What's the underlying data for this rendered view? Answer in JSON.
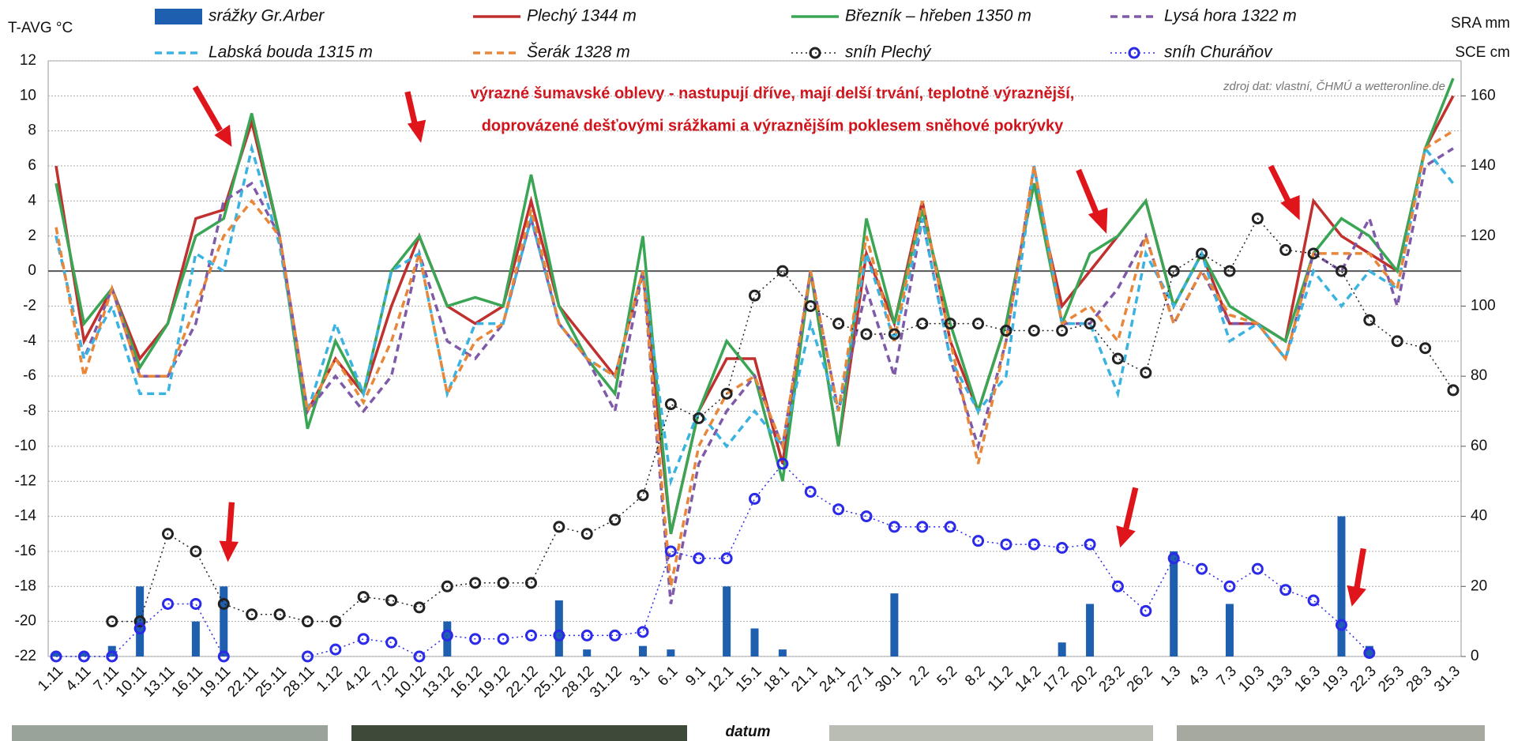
{
  "chart_data": {
    "type": "line",
    "y_label": "T-AVG °C",
    "y2_labels": [
      "SRA mm",
      "SCE cm"
    ],
    "x_label": "datum",
    "annotations": [
      "výrazné šumavské oblevy - nastupují dříve, mají delší trvání, teplotně výraznější,",
      "doprovázené dešťovými srážkami a výraznějším  poklesem sněhové pokrývky"
    ],
    "source": "zdroj dat: vlastní, ČHMÚ a wetteronline.de",
    "categories": [
      "1.11",
      "4.11",
      "7.11",
      "10.11",
      "13.11",
      "16.11",
      "19.11",
      "22.11",
      "25.11",
      "28.11",
      "1.12",
      "4.12",
      "7.12",
      "10.12",
      "13.12",
      "16.12",
      "19.12",
      "22.12",
      "25.12",
      "28.12",
      "31.12",
      "3.1",
      "6.1",
      "9.1",
      "12.1",
      "15.1",
      "18.1",
      "21.1",
      "24.1",
      "27.1",
      "30.1",
      "2.2",
      "5.2",
      "8.2",
      "11.2",
      "14.2",
      "17.2",
      "20.2",
      "23.2",
      "26.2",
      "1.3",
      "4.3",
      "7.3",
      "10.3",
      "13.3",
      "16.3",
      "19.3",
      "22.3",
      "25.3",
      "28.3",
      "31.3"
    ],
    "ylim": [
      -22,
      12
    ],
    "yticks": [
      -22,
      -20,
      -18,
      -16,
      -14,
      -12,
      -10,
      -8,
      -6,
      -4,
      -2,
      0,
      2,
      4,
      6,
      8,
      10,
      12
    ],
    "y2lim": [
      0,
      170
    ],
    "y2ticks": [
      0,
      20,
      40,
      60,
      80,
      100,
      120,
      140,
      160
    ],
    "grid": true,
    "series": [
      {
        "name": "srážky Gr.Arber",
        "kind": "bar",
        "axis": "y2",
        "color": "#1f5fb0",
        "values": [
          1,
          1,
          3,
          20,
          0,
          10,
          20,
          0,
          0,
          0,
          0,
          0,
          0,
          0,
          10,
          0,
          0,
          0,
          16,
          2,
          0,
          3,
          2,
          0,
          20,
          8,
          2,
          0,
          0,
          0,
          18,
          0,
          0,
          0,
          0,
          0,
          4,
          15,
          0,
          0,
          30,
          0,
          15,
          0,
          0,
          0,
          40,
          3,
          0,
          0,
          0
        ]
      },
      {
        "name": "Plechý 1344 m",
        "kind": "line",
        "color": "#c0302e",
        "dash": "solid",
        "values": [
          6,
          -4,
          -1,
          -5,
          -3,
          3,
          3.5,
          8.5,
          2,
          -8,
          -5,
          -7,
          -2,
          2,
          -2,
          -3,
          -2,
          4,
          -2,
          -4,
          -6,
          0,
          -15,
          -8,
          -5,
          -5,
          -11,
          0,
          -10,
          1,
          -3,
          4,
          -4,
          -8,
          -3,
          5,
          -2,
          0,
          2,
          4,
          -2,
          1,
          -3,
          -3,
          -4,
          4,
          2,
          1,
          0,
          7,
          10
        ]
      },
      {
        "name": "Březník – hřeben 1350 m",
        "kind": "line",
        "color": "#3aa655",
        "dash": "solid",
        "values": [
          5,
          -3,
          -1,
          -5.5,
          -3,
          2,
          3,
          9,
          2,
          -9,
          -4,
          -7,
          0,
          2,
          -2,
          -1.5,
          -2,
          5.5,
          -2,
          -5,
          -7,
          2,
          -15,
          -8,
          -4,
          -6,
          -12,
          0,
          -10,
          3,
          -3,
          3.5,
          -3,
          -8,
          -3,
          5,
          -3,
          1,
          2,
          4,
          -2,
          1,
          -2,
          -3,
          -4,
          1,
          3,
          2,
          0,
          7,
          11
        ]
      },
      {
        "name": "Lysá hora 1322 m",
        "kind": "line",
        "color": "#7f5aa8",
        "dash": "dash",
        "values": [
          2,
          -5,
          -1,
          -6,
          -6,
          -3,
          4,
          5,
          2,
          -8,
          -6,
          -8,
          -6,
          1,
          -4,
          -5,
          -3,
          3,
          -3,
          -5,
          -8,
          0,
          -19,
          -11,
          -8,
          -6,
          -10,
          0,
          -8,
          -1,
          -6,
          3,
          -5,
          -10,
          -4,
          6,
          -3,
          -3,
          -1,
          2,
          -3,
          0,
          -3,
          -3,
          -5,
          1,
          0,
          3,
          -2,
          6,
          7
        ]
      },
      {
        "name": "Labská bouda 1315 m",
        "kind": "line",
        "color": "#3bb3e0",
        "dash": "dash",
        "values": [
          2,
          -5,
          -2,
          -7,
          -7,
          1,
          0,
          7,
          1.5,
          -8,
          -3,
          -7,
          0,
          1,
          -7,
          -3,
          -3,
          3,
          -3,
          -5,
          -6,
          0,
          -12,
          -8,
          -10,
          -8,
          -10,
          -3,
          -8,
          1,
          -4,
          3,
          -5,
          -8,
          -6,
          6,
          -3,
          -3,
          -7,
          1,
          -2,
          1,
          -4,
          -3,
          -5,
          0,
          -2,
          0,
          -1,
          7,
          5
        ]
      },
      {
        "name": "Šerák 1328 m",
        "kind": "line",
        "color": "#e8873a",
        "dash": "dash",
        "values": [
          2.5,
          -6,
          -1,
          -6,
          -6,
          -2,
          2,
          4,
          2,
          -8,
          -5,
          -7.5,
          -4,
          1,
          -7,
          -4,
          -3,
          3.5,
          -3,
          -5,
          -6,
          0,
          -18,
          -10,
          -7,
          -6,
          -10,
          0,
          -8,
          2,
          -4,
          4,
          -4,
          -11,
          -4,
          6,
          -3,
          -2,
          -4,
          2,
          -3,
          0,
          -2.5,
          -3,
          -5,
          1,
          1,
          1,
          -1,
          7,
          8
        ]
      },
      {
        "name": "sníh Plechý",
        "kind": "line",
        "marker": true,
        "axis": "y2",
        "color": "#222222",
        "dash": "dot",
        "values": [
          null,
          null,
          10,
          10,
          35,
          30,
          15,
          12,
          12,
          10,
          10,
          17,
          16,
          14,
          20,
          21,
          21,
          21,
          37,
          35,
          39,
          46,
          72,
          68,
          75,
          103,
          110,
          100,
          95,
          92,
          92,
          95,
          95,
          95,
          93,
          93,
          93,
          95,
          85,
          81,
          110,
          115,
          110,
          125,
          116,
          115,
          110,
          96,
          90,
          88,
          76
        ]
      },
      {
        "name": "sníh Churáňov",
        "kind": "line",
        "marker": true,
        "axis": "y2",
        "color": "#2a2ae8",
        "dash": "dot",
        "values": [
          0,
          0,
          0,
          8,
          15,
          15,
          0,
          null,
          null,
          0,
          2,
          5,
          4,
          0,
          6,
          5,
          5,
          6,
          6,
          6,
          6,
          7,
          30,
          28,
          28,
          45,
          55,
          47,
          42,
          40,
          37,
          37,
          37,
          33,
          32,
          32,
          31,
          32,
          20,
          13,
          28,
          25,
          20,
          25,
          19,
          16,
          9,
          1,
          null,
          null,
          null
        ]
      }
    ]
  }
}
